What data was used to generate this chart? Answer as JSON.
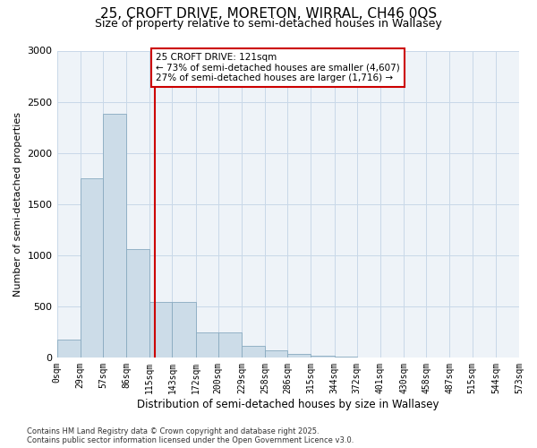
{
  "title1": "25, CROFT DRIVE, MORETON, WIRRAL, CH46 0QS",
  "title2": "Size of property relative to semi-detached houses in Wallasey",
  "xlabel": "Distribution of semi-detached houses by size in Wallasey",
  "ylabel": "Number of semi-detached properties",
  "property_size": 121,
  "annotation_title": "25 CROFT DRIVE: 121sqm",
  "annotation_line1": "← 73% of semi-detached houses are smaller (4,607)",
  "annotation_line2": "27% of semi-detached houses are larger (1,716) →",
  "footer1": "Contains HM Land Registry data © Crown copyright and database right 2025.",
  "footer2": "Contains public sector information licensed under the Open Government Licence v3.0.",
  "bin_edges": [
    0,
    29,
    57,
    86,
    115,
    143,
    172,
    200,
    229,
    258,
    286,
    315,
    344,
    372,
    401,
    430,
    458,
    487,
    515,
    544,
    573
  ],
  "bin_labels": [
    "0sqm",
    "29sqm",
    "57sqm",
    "86sqm",
    "115sqm",
    "143sqm",
    "172sqm",
    "200sqm",
    "229sqm",
    "258sqm",
    "286sqm",
    "315sqm",
    "344sqm",
    "372sqm",
    "401sqm",
    "430sqm",
    "458sqm",
    "487sqm",
    "515sqm",
    "544sqm",
    "573sqm"
  ],
  "bar_heights": [
    175,
    1750,
    2380,
    1060,
    540,
    540,
    240,
    240,
    115,
    65,
    30,
    15,
    5,
    2,
    1,
    0,
    0,
    0,
    0,
    0
  ],
  "bar_color": "#ccdce8",
  "bar_edge_color": "#88aac0",
  "vline_color": "#cc0000",
  "vline_x": 121,
  "ylim": [
    0,
    3000
  ],
  "yticks": [
    0,
    500,
    1000,
    1500,
    2000,
    2500,
    3000
  ],
  "bg_color": "#ffffff",
  "plot_bg_color": "#eef3f8",
  "grid_color": "#c8d8e8",
  "title1_fontsize": 11,
  "title2_fontsize": 9
}
